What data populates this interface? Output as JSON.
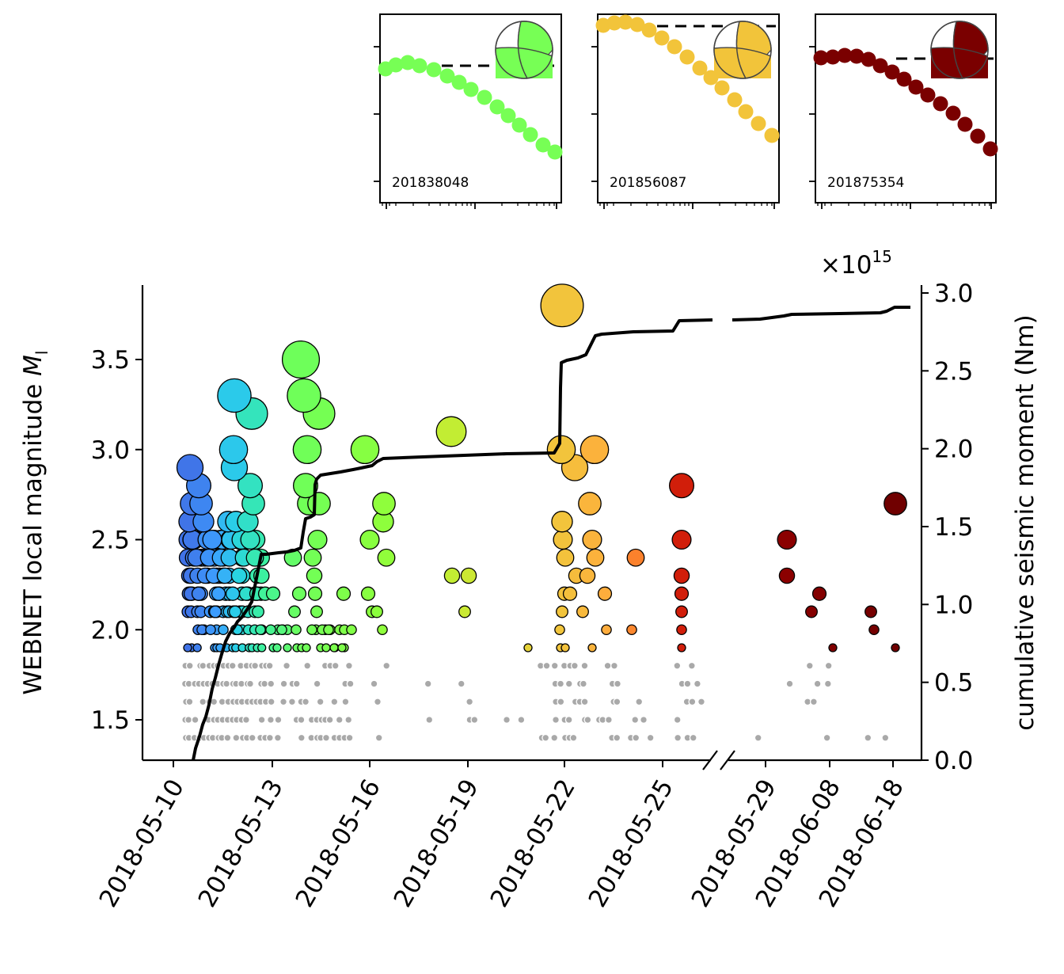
{
  "chart_data": {
    "type": "scatter",
    "ylabel": "WEBNET local magnitude",
    "ylabel_symbol": "M",
    "ylabel_subscript": "l",
    "y2label": "cumulative seismic moment (Nm)",
    "y2_multiplier": "×10",
    "y2_multiplier_exp": "15",
    "ylim": [
      1.28,
      3.92
    ],
    "y2lim": [
      0,
      3.05
    ],
    "yticks": [
      "1.5",
      "2.0",
      "2.5",
      "3.0",
      "3.5"
    ],
    "y2ticks": [
      "0.0",
      "0.5",
      "1.0",
      "1.5",
      "2.0",
      "2.5",
      "3.0"
    ],
    "x_axis_broken": true,
    "x_break_after": "2018-05-26",
    "xticks": [
      "2018-05-10",
      "2018-05-13",
      "2018-05-16",
      "2018-05-19",
      "2018-05-22",
      "2018-05-25",
      "2018-05-29",
      "2018-06-08",
      "2018-06-18"
    ],
    "colormap": "rainbow (blue → green → yellow → orange → dark red) by event time",
    "small_events_color": "#aaaaaa",
    "cumulative_line_color": "#000000",
    "inset_line_color": "#000000",
    "series": [
      {
        "name": "large events",
        "points": [
          [
            "2018-05-10",
            2.9
          ],
          [
            "2018-05-10",
            2.8
          ],
          [
            "2018-05-10",
            2.7
          ],
          [
            "2018-05-10",
            2.6
          ],
          [
            "2018-05-10",
            2.5
          ],
          [
            "2018-05-10",
            2.4
          ],
          [
            "2018-05-10",
            2.2
          ],
          [
            "2018-05-11",
            2.7
          ],
          [
            "2018-05-11",
            2.6
          ],
          [
            "2018-05-11",
            2.5
          ],
          [
            "2018-05-11",
            2.4
          ],
          [
            "2018-05-11",
            2.3
          ],
          [
            "2018-05-11",
            2.2
          ],
          [
            "2018-05-11",
            2.1
          ],
          [
            "2018-05-11",
            2.0
          ],
          [
            "2018-05-12",
            3.3
          ],
          [
            "2018-05-12",
            3.0
          ],
          [
            "2018-05-12",
            2.9
          ],
          [
            "2018-05-12",
            2.6
          ],
          [
            "2018-05-12",
            2.5
          ],
          [
            "2018-05-12",
            2.4
          ],
          [
            "2018-05-12",
            2.3
          ],
          [
            "2018-05-12",
            2.2
          ],
          [
            "2018-05-13",
            3.2
          ],
          [
            "2018-05-13",
            2.8
          ],
          [
            "2018-05-13",
            2.7
          ],
          [
            "2018-05-13",
            2.6
          ],
          [
            "2018-05-13",
            2.4
          ],
          [
            "2018-05-13",
            2.2
          ],
          [
            "2018-05-14",
            3.5
          ],
          [
            "2018-05-14",
            3.3
          ],
          [
            "2018-05-14",
            3.0
          ],
          [
            "2018-05-14",
            2.8
          ],
          [
            "2018-05-14",
            2.7
          ],
          [
            "2018-05-14",
            2.4
          ],
          [
            "2018-05-14",
            2.2
          ],
          [
            "2018-05-14",
            2.1
          ],
          [
            "2018-05-15",
            3.2
          ],
          [
            "2018-05-15",
            2.7
          ],
          [
            "2018-05-15",
            2.5
          ],
          [
            "2018-05-15",
            2.3
          ],
          [
            "2018-05-15",
            2.2
          ],
          [
            "2018-05-16",
            3.0
          ],
          [
            "2018-05-16",
            2.5
          ],
          [
            "2018-05-16",
            2.2
          ],
          [
            "2018-05-16",
            2.1
          ],
          [
            "2018-05-17",
            2.7
          ],
          [
            "2018-05-17",
            2.6
          ],
          [
            "2018-05-17",
            2.4
          ],
          [
            "2018-05-18",
            3.1
          ],
          [
            "2018-05-18",
            2.3
          ],
          [
            "2018-05-19",
            2.3
          ],
          [
            "2018-05-18",
            2.1
          ],
          [
            "2018-05-21",
            1.9
          ],
          [
            "2018-05-22",
            3.8
          ],
          [
            "2018-05-22",
            3.0
          ],
          [
            "2018-05-22",
            2.6
          ],
          [
            "2018-05-22",
            2.5
          ],
          [
            "2018-05-22",
            2.4
          ],
          [
            "2018-05-22",
            2.2
          ],
          [
            "2018-05-22",
            2.1
          ],
          [
            "2018-05-22",
            2.0
          ],
          [
            "2018-05-23",
            2.9
          ],
          [
            "2018-05-23",
            2.3
          ],
          [
            "2018-05-24",
            3.0
          ],
          [
            "2018-05-24",
            2.7
          ],
          [
            "2018-05-24",
            2.5
          ],
          [
            "2018-05-24",
            2.4
          ],
          [
            "2018-05-24",
            2.2
          ],
          [
            "2018-05-24",
            2.1
          ],
          [
            "2018-05-25",
            2.4
          ],
          [
            "2018-05-25",
            2.0
          ],
          [
            "2018-05-26",
            2.8
          ],
          [
            "2018-05-26",
            2.5
          ],
          [
            "2018-05-26",
            2.3
          ],
          [
            "2018-05-26",
            2.2
          ],
          [
            "2018-05-26",
            2.1
          ],
          [
            "2018-05-26",
            2.0
          ],
          [
            "2018-05-26",
            1.9
          ],
          [
            "2018-06-01",
            2.5
          ],
          [
            "2018-06-01",
            2.3
          ],
          [
            "2018-06-05",
            2.1
          ],
          [
            "2018-06-07",
            2.2
          ],
          [
            "2018-06-08",
            1.9
          ],
          [
            "2018-06-14",
            2.1
          ],
          [
            "2018-06-15",
            2.0
          ],
          [
            "2018-06-18",
            2.7
          ],
          [
            "2018-06-18",
            1.9
          ]
        ]
      },
      {
        "name": "cumulative seismic moment",
        "points": [
          [
            "2018-05-10",
            0.0
          ],
          [
            "2018-05-11",
            0.35
          ],
          [
            "2018-05-12",
            0.9
          ],
          [
            "2018-05-13",
            1.25
          ],
          [
            "2018-05-14",
            1.33
          ],
          [
            "2018-05-15",
            1.8
          ],
          [
            "2018-05-16",
            1.88
          ],
          [
            "2018-05-17",
            1.93
          ],
          [
            "2018-05-19",
            1.96
          ],
          [
            "2018-05-21",
            1.98
          ],
          [
            "2018-05-22",
            2.5
          ],
          [
            "2018-05-23",
            2.6
          ],
          [
            "2018-05-24",
            2.7
          ],
          [
            "2018-05-26",
            2.75
          ],
          [
            "2018-05-29",
            2.78
          ],
          [
            "2018-06-08",
            2.85
          ],
          [
            "2018-06-18",
            2.9
          ]
        ]
      }
    ]
  },
  "insets": [
    {
      "label": "201838048",
      "color": "#77ff55"
    },
    {
      "label": "201856087",
      "color": "#f2c43a"
    },
    {
      "label": "201875354",
      "color": "#7a0000"
    }
  ]
}
